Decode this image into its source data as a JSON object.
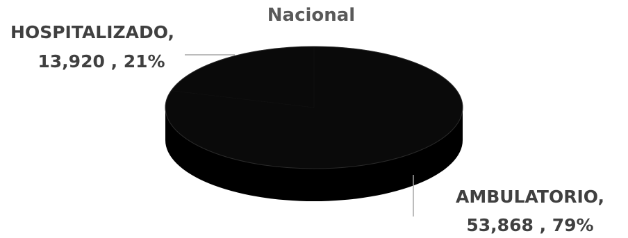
{
  "chart_data": {
    "type": "pie",
    "title": "Nacional",
    "slices": [
      {
        "category": "HOSPITALIZADO,",
        "value_label": "13,920 , 21%",
        "value": 13920,
        "percent": 21
      },
      {
        "category": "AMBULATORIO,",
        "value_label": "53,868 , 79%",
        "value": 53868,
        "percent": 79
      }
    ],
    "three_d": true,
    "colors": {
      "pie_top": "#0a0a0a",
      "pie_side": "#000000",
      "leader_line": "#a6a6a6",
      "label_text": "#404040",
      "title_text": "#595959"
    }
  }
}
